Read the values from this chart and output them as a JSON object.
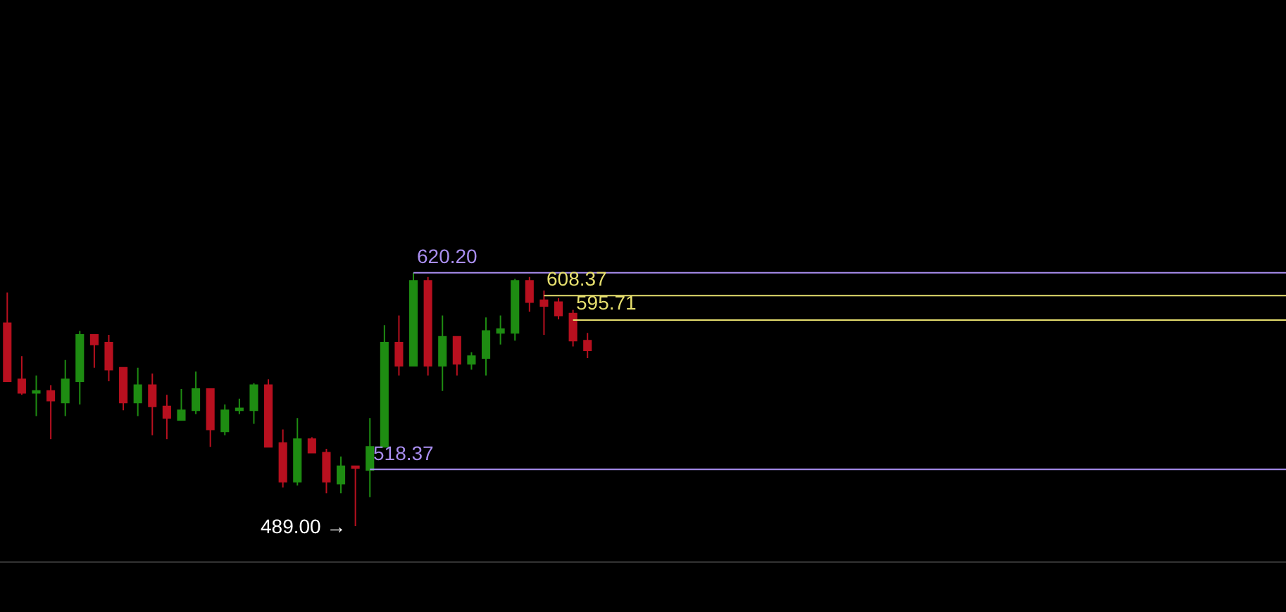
{
  "chart_data": {
    "type": "candlestick",
    "categories": [
      null,
      null,
      null,
      null,
      null,
      null,
      null,
      null,
      null,
      null,
      null,
      null,
      null,
      null,
      null,
      null,
      null,
      null,
      null,
      null,
      null,
      null,
      null,
      null,
      null,
      null,
      null,
      null,
      null,
      null,
      null,
      null,
      null,
      null,
      null,
      null,
      null,
      null,
      null,
      null,
      null
    ],
    "ohlc": [
      [
        594,
        610,
        564,
        564
      ],
      [
        565,
        577,
        557,
        558
      ],
      [
        558,
        567,
        546,
        559
      ],
      [
        559,
        562,
        534,
        554
      ],
      [
        553,
        575,
        546,
        565
      ],
      [
        564,
        590,
        552,
        588
      ],
      [
        588,
        588,
        571,
        583
      ],
      [
        584,
        588,
        564,
        570
      ],
      [
        571,
        571,
        549,
        553
      ],
      [
        553,
        571,
        546,
        562
      ],
      [
        562,
        568,
        536,
        551
      ],
      [
        551,
        557,
        534,
        545
      ],
      [
        544,
        560,
        544,
        549
      ],
      [
        549,
        569,
        547,
        560
      ],
      [
        560,
        560,
        530,
        539
      ],
      [
        538,
        552,
        536,
        549
      ],
      [
        549,
        555,
        547,
        550
      ],
      [
        549,
        563,
        542,
        562
      ],
      [
        562,
        565,
        530,
        530
      ],
      [
        532,
        539,
        509,
        512
      ],
      [
        512,
        545,
        510,
        534
      ],
      [
        534,
        535,
        527,
        527
      ],
      [
        527,
        529,
        506,
        512
      ],
      [
        511,
        525,
        506,
        520
      ],
      [
        520,
        520,
        489,
        519
      ],
      [
        518,
        545,
        504,
        530
      ],
      [
        530,
        593,
        530,
        584
      ],
      [
        584,
        598,
        567,
        572
      ],
      [
        572,
        620.2,
        572,
        616
      ],
      [
        616,
        618,
        567,
        572
      ],
      [
        572,
        598,
        559,
        587
      ],
      [
        587,
        587,
        567,
        573
      ],
      [
        573,
        579,
        570,
        577
      ],
      [
        576,
        597,
        567,
        590
      ],
      [
        589,
        598,
        583,
        591
      ],
      [
        589,
        617,
        585,
        616
      ],
      [
        616,
        618,
        600,
        605
      ],
      [
        606,
        611,
        588,
        603
      ],
      [
        605,
        607,
        596,
        598
      ],
      [
        599,
        601,
        582,
        585
      ],
      [
        585,
        589,
        576,
        580
      ]
    ],
    "colors": [
      "#b8101f",
      "#b8101f",
      "#1e8c12",
      "#b8101f",
      "#1e8c12",
      "#1e8c12",
      "#b8101f",
      "#b8101f",
      "#b8101f",
      "#1e8c12",
      "#b8101f",
      "#b8101f",
      "#1e8c12",
      "#1e8c12",
      "#b8101f",
      "#1e8c12",
      "#1e8c12",
      "#1e8c12",
      "#b8101f",
      "#b8101f",
      "#1e8c12",
      "#b8101f",
      "#b8101f",
      "#1e8c12",
      "#b8101f",
      "#1e8c12",
      "#1e8c12",
      "#b8101f",
      "#1e8c12",
      "#b8101f",
      "#1e8c12",
      "#b8101f",
      "#1e8c12",
      "#1e8c12",
      "#1e8c12",
      "#1e8c12",
      "#b8101f",
      "#b8101f",
      "#b8101f",
      "#b8101f",
      "#b8101f"
    ],
    "ref_lines": [
      {
        "axis": "y",
        "value": 620.2,
        "label": "620.20",
        "color": "#a98ef0"
      },
      {
        "axis": "y",
        "value": 608.37,
        "label": "608.37",
        "color": "#e6df6e"
      },
      {
        "axis": "y",
        "value": 595.71,
        "label": "595.71",
        "color": "#e6df6e"
      },
      {
        "axis": "y",
        "value": 518.37,
        "label": "518.37",
        "color": "#a98ef0"
      }
    ],
    "annotations": [
      "489.00 →"
    ]
  }
}
